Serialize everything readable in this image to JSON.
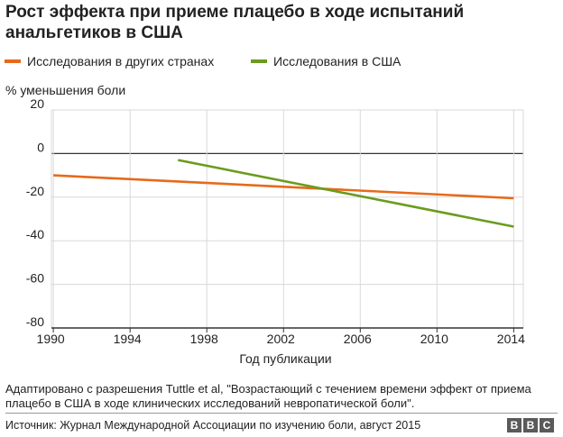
{
  "title": "Рост эффекта при приеме плацебо в ходе испытаний анальгетиков в США",
  "colors": {
    "series_other": "#e66a1a",
    "series_usa": "#6b9b1e",
    "grid": "#d9d9d9",
    "zero_line": "#333333"
  },
  "chart_data": {
    "type": "line",
    "title": "Рост эффекта при приеме плацебо в ходе испытаний анальгетиков в США",
    "ylabel": "% уменьшения боли",
    "xlabel": "Год публикации",
    "xlim": [
      1989.9,
      2014.5
    ],
    "ylim": [
      -80,
      20
    ],
    "x_ticks": [
      1990,
      1994,
      1998,
      2002,
      2006,
      2010,
      2014
    ],
    "y_ticks": [
      20,
      0,
      -20,
      -40,
      -60,
      -80
    ],
    "grid": true,
    "legend_position": "top-left",
    "series": [
      {
        "name": "Исследования в других странах",
        "color": "#e66a1a",
        "x": [
          1990,
          2014
        ],
        "y": [
          -10,
          -20.5
        ]
      },
      {
        "name": "Исследования в США",
        "color": "#6b9b1e",
        "x": [
          1996.5,
          2014
        ],
        "y": [
          -3,
          -33.5
        ]
      }
    ]
  },
  "note": "Адаптировано с разрешения Tuttle et al, \"Возрастающий с течением времени эффект от приема плацебо в США в ходе клинических исследований невропатической боли\".",
  "source": "Источник: Журнал Международной Ассоциации по изучению боли, август 2015",
  "logo": {
    "letters": [
      "B",
      "B",
      "C"
    ]
  }
}
